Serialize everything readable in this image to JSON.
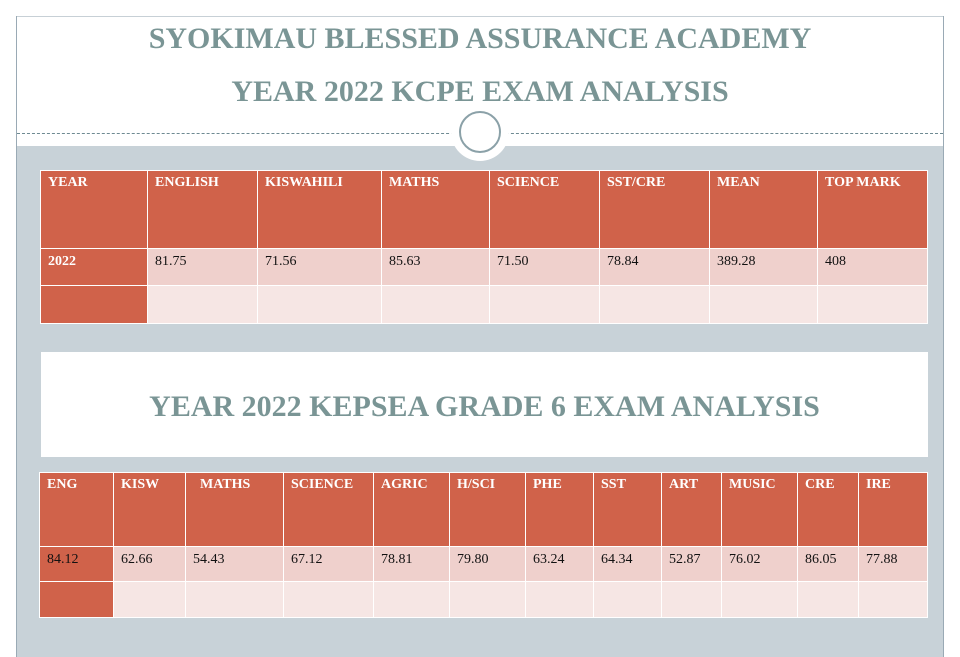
{
  "header": {
    "school_name": "SYOKIMAU BLESSED ASSURANCE ACADEMY",
    "kcpe_title": "YEAR 2022 KCPE EXAM ANALYSIS"
  },
  "kcpe_table": {
    "columns": [
      "YEAR",
      "ENGLISH",
      "KISWAHILI",
      "MATHS",
      "SCIENCE",
      "SST/CRE",
      "MEAN",
      "TOP MARK"
    ],
    "rows": [
      [
        "2022",
        "81.75",
        "71.56",
        "85.63",
        "71.50",
        "78.84",
        "389.28",
        "408"
      ],
      [
        "",
        "",
        "",
        "",
        "",
        "",
        "",
        ""
      ]
    ]
  },
  "kepsea": {
    "title": "YEAR 2022 KEPSEA GRADE 6 EXAM ANALYSIS"
  },
  "kepsea_table": {
    "columns": [
      "ENG",
      "KISW",
      "MATHS",
      "SCIENCE",
      "AGRIC",
      "H/SCI",
      "PHE",
      "SST",
      "ART",
      "MUSIC",
      "CRE",
      "IRE"
    ],
    "rows": [
      [
        "84.12",
        "62.66",
        "54.43",
        "67.12",
        "78.81",
        "79.80",
        "63.24",
        "64.34",
        "52.87",
        "76.02",
        "86.05",
        "77.88"
      ],
      [
        "",
        "",
        "",
        "",
        "",
        "",
        "",
        "",
        "",
        "",
        "",
        ""
      ]
    ]
  },
  "colors": {
    "header_cell": "#d0624a",
    "row_primary": "#efd0cc",
    "row_secondary": "#f6e6e4",
    "title_text": "#7a9595",
    "band": "#c8d2d8"
  }
}
